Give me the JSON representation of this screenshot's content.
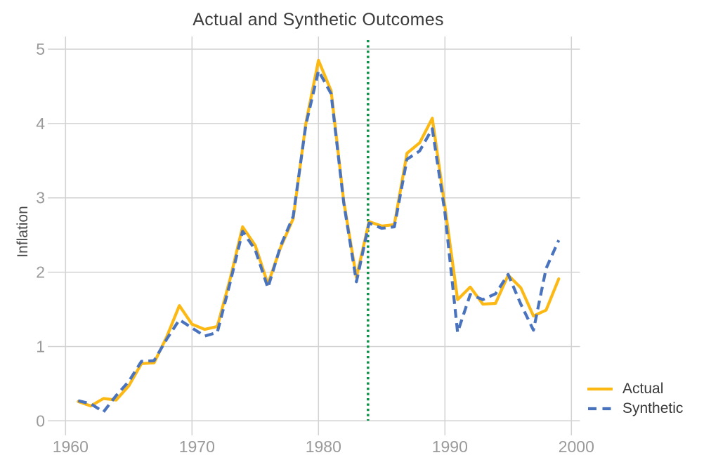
{
  "chart_data": {
    "type": "line",
    "title": "Actual and Synthetic Outcomes",
    "xlabel": "",
    "ylabel": "Inflation",
    "x": [
      1961,
      1962,
      1963,
      1964,
      1965,
      1966,
      1967,
      1968,
      1969,
      1970,
      1971,
      1972,
      1973,
      1974,
      1975,
      1976,
      1977,
      1978,
      1979,
      1980,
      1981,
      1982,
      1983,
      1984,
      1985,
      1986,
      1987,
      1988,
      1989,
      1990,
      1991,
      1992,
      1993,
      1994,
      1995,
      1996,
      1997,
      1998,
      1999
    ],
    "series": [
      {
        "name": "Actual",
        "style": "solid",
        "color": "#FCB813",
        "values": [
          0.26,
          0.2,
          0.3,
          0.28,
          0.47,
          0.77,
          0.78,
          1.13,
          1.55,
          1.3,
          1.23,
          1.27,
          1.9,
          2.61,
          2.36,
          1.84,
          2.33,
          2.72,
          4.0,
          4.85,
          4.44,
          2.95,
          1.93,
          2.68,
          2.62,
          2.64,
          3.6,
          3.74,
          4.07,
          2.88,
          1.63,
          1.8,
          1.57,
          1.58,
          1.96,
          1.79,
          1.41,
          1.49,
          1.91
        ]
      },
      {
        "name": "Synthetic",
        "style": "dashed",
        "color": "#4A73BE",
        "values": [
          0.27,
          0.23,
          0.12,
          0.34,
          0.53,
          0.8,
          0.81,
          1.1,
          1.36,
          1.25,
          1.14,
          1.19,
          1.85,
          2.55,
          2.3,
          1.79,
          2.35,
          2.75,
          3.98,
          4.71,
          4.4,
          2.93,
          1.87,
          2.66,
          2.59,
          2.61,
          3.52,
          3.63,
          3.93,
          2.8,
          1.19,
          1.7,
          1.63,
          1.71,
          1.97,
          1.57,
          1.22,
          2.05,
          2.43
        ]
      }
    ],
    "treatment_line": {
      "x": 1984,
      "color": "#12914B",
      "style": "dotted"
    },
    "x_ticks": [
      1960,
      1970,
      1980,
      1990,
      2000
    ],
    "y_ticks": [
      0,
      1,
      2,
      3,
      4,
      5
    ],
    "xlim": [
      1958.6,
      2000.7
    ],
    "ylim": [
      0,
      5
    ],
    "grid": true,
    "grid_color": "#d2d2d2",
    "legend_position": "right-bottom"
  }
}
